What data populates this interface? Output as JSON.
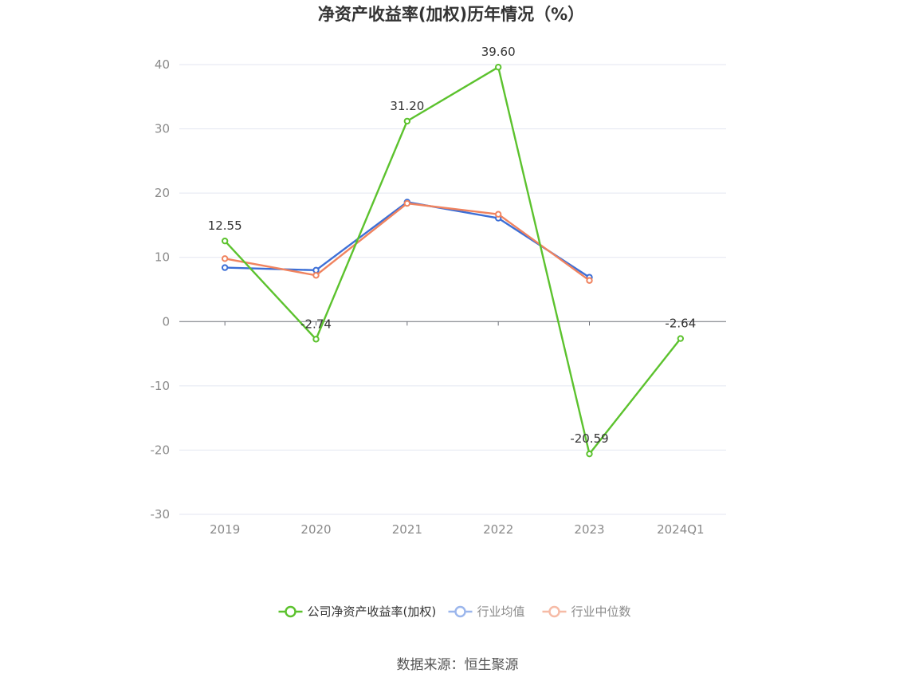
{
  "chart_data": {
    "type": "line",
    "title": "净资产收益率(加权)历年情况（%）",
    "categories": [
      "2019",
      "2020",
      "2021",
      "2022",
      "2023",
      "2024Q1"
    ],
    "ylim": [
      -30,
      40
    ],
    "yticks": [
      -30,
      -20,
      -10,
      0,
      10,
      20,
      30,
      40
    ],
    "grid": true,
    "legend_position": "bottom",
    "series": [
      {
        "name": "公司净资产收益率(加权)",
        "color": "#5cc22e",
        "values": [
          12.55,
          -2.74,
          31.2,
          39.6,
          -20.59,
          -2.64
        ],
        "labels": [
          "12.55",
          "-2.74",
          "31.20",
          "39.60",
          "-20.59",
          "-2.64"
        ]
      },
      {
        "name": "行业均值",
        "color": "#3d6fd6",
        "legend_color": "#9bb6ec",
        "values": [
          8.4,
          8.0,
          18.6,
          16.1,
          6.9,
          null
        ]
      },
      {
        "name": "行业中位数",
        "color": "#f0835f",
        "legend_color": "#f6bba6",
        "values": [
          9.8,
          7.2,
          18.4,
          16.7,
          6.4,
          null
        ]
      }
    ]
  },
  "source_text": "数据来源：恒生聚源"
}
